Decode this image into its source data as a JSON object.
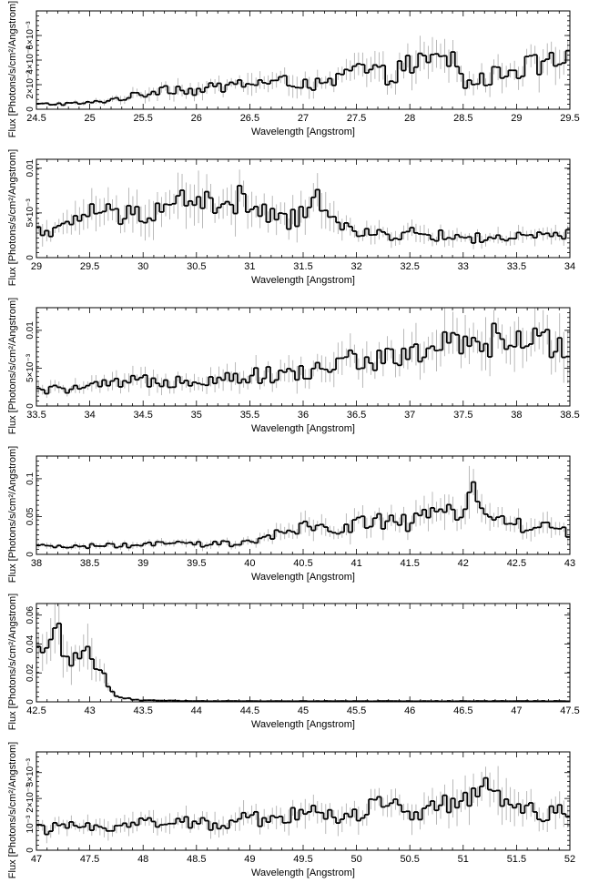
{
  "chart_data": [
    {
      "type": "line",
      "xlabel": "Wavelength [Angstrom]",
      "ylabel": "Flux [Photons/s/cm²/Angstrom]",
      "xlim": [
        24.5,
        29.5
      ],
      "ylim": [
        0,
        0.008
      ],
      "xticks": [
        "24.5",
        "25",
        "25.5",
        "26",
        "26.5",
        "27",
        "27.5",
        "28",
        "28.5",
        "29",
        "29.5"
      ],
      "yticks": [
        {
          "v": 0,
          "label": "0"
        },
        {
          "v": 0.002,
          "label": "2×10⁻³"
        },
        {
          "v": 0.004,
          "label": "4×10⁻³"
        },
        {
          "v": 0.006,
          "label": "6×10⁻³"
        }
      ],
      "series": [
        {
          "x": [
            24.5,
            25.0,
            25.5,
            25.7,
            26.0,
            26.3,
            26.5,
            26.7,
            27.0,
            27.2,
            27.5,
            27.8,
            28.0,
            28.2,
            28.4,
            28.5,
            28.7,
            28.9,
            29.0,
            29.2,
            29.5
          ],
          "y": [
            0.0004,
            0.0005,
            0.0012,
            0.0018,
            0.0015,
            0.0019,
            0.0022,
            0.0021,
            0.0023,
            0.0018,
            0.0033,
            0.0027,
            0.0036,
            0.0038,
            0.0042,
            0.0021,
            0.0024,
            0.0032,
            0.0033,
            0.0036,
            0.0039
          ]
        }
      ]
    },
    {
      "type": "line",
      "xlabel": "Wavelength [Angstrom]",
      "ylabel": "Flux [Photons/s/cm²/Angstrom]",
      "xlim": [
        29,
        34
      ],
      "ylim": [
        0,
        0.011
      ],
      "xticks": [
        "29",
        "29.5",
        "30",
        "30.5",
        "31",
        "31.5",
        "32",
        "32.5",
        "33",
        "33.5",
        "34"
      ],
      "yticks": [
        {
          "v": 0,
          "label": "0"
        },
        {
          "v": 0.005,
          "label": "5×10⁻³"
        },
        {
          "v": 0.01,
          "label": "0.01"
        }
      ],
      "series": [
        {
          "x": [
            29.0,
            29.3,
            29.5,
            29.8,
            30.0,
            30.3,
            30.5,
            30.7,
            30.9,
            31.1,
            31.3,
            31.5,
            31.7,
            31.85,
            32.0,
            32.5,
            33.0,
            33.5,
            34.0
          ],
          "y": [
            0.003,
            0.0033,
            0.0055,
            0.0045,
            0.0052,
            0.006,
            0.0072,
            0.005,
            0.0065,
            0.005,
            0.0042,
            0.0045,
            0.007,
            0.004,
            0.0025,
            0.0027,
            0.0022,
            0.0022,
            0.0025
          ]
        }
      ]
    },
    {
      "type": "line",
      "xlabel": "Wavelength [Angstrom]",
      "ylabel": "Flux [Photons/s/cm²/Angstrom]",
      "xlim": [
        33.5,
        38.5
      ],
      "ylim": [
        0,
        0.013
      ],
      "xticks": [
        "33.5",
        "34",
        "34.5",
        "35",
        "35.5",
        "36",
        "36.5",
        "37",
        "37.5",
        "38",
        "38.5"
      ],
      "yticks": [
        {
          "v": 0,
          "label": "0"
        },
        {
          "v": 0.005,
          "label": "5×10⁻³"
        },
        {
          "v": 0.01,
          "label": "0.01"
        }
      ],
      "series": [
        {
          "x": [
            33.5,
            34.0,
            34.5,
            35.0,
            35.5,
            36.0,
            36.3,
            36.5,
            36.8,
            37.0,
            37.3,
            37.5,
            37.8,
            38.0,
            38.3,
            38.5
          ],
          "y": [
            0.002,
            0.0025,
            0.0033,
            0.0035,
            0.004,
            0.0043,
            0.0055,
            0.0063,
            0.006,
            0.0068,
            0.0082,
            0.0075,
            0.0088,
            0.008,
            0.0085,
            0.009
          ]
        }
      ]
    },
    {
      "type": "line",
      "xlabel": "Wavelength [Angstrom]",
      "ylabel": "Flux [Photons/s/cm²/Angstrom]",
      "xlim": [
        38,
        43
      ],
      "ylim": [
        0,
        0.13
      ],
      "xticks": [
        "38",
        "38.5",
        "39",
        "39.5",
        "40",
        "40.5",
        "41",
        "41.5",
        "42",
        "42.5",
        "43"
      ],
      "yticks": [
        {
          "v": 0,
          "label": "0"
        },
        {
          "v": 0.05,
          "label": "0.05"
        },
        {
          "v": 0.1,
          "label": "0.1"
        }
      ],
      "series": [
        {
          "x": [
            38.0,
            38.5,
            39.0,
            39.3,
            39.5,
            40.0,
            40.3,
            40.5,
            40.8,
            41.0,
            41.3,
            41.5,
            41.8,
            42.0,
            42.1,
            42.2,
            42.5,
            43.0
          ],
          "y": [
            0.01,
            0.011,
            0.012,
            0.015,
            0.013,
            0.015,
            0.028,
            0.035,
            0.032,
            0.042,
            0.045,
            0.04,
            0.055,
            0.062,
            0.098,
            0.05,
            0.04,
            0.03
          ]
        }
      ]
    },
    {
      "type": "line",
      "xlabel": "Wavelength [Angstrom]",
      "ylabel": "Flux [Photons/s/cm²/Angstrom]",
      "xlim": [
        42.5,
        47.5
      ],
      "ylim": [
        0,
        0.068
      ],
      "xticks": [
        "42.5",
        "43",
        "43.5",
        "44",
        "44.5",
        "45",
        "45.5",
        "46",
        "46.5",
        "47",
        "47.5"
      ],
      "yticks": [
        {
          "v": 0,
          "label": "0"
        },
        {
          "v": 0.02,
          "label": "0.02"
        },
        {
          "v": 0.04,
          "label": "0.04"
        },
        {
          "v": 0.06,
          "label": "0.06"
        }
      ],
      "series": [
        {
          "x": [
            42.5,
            42.6,
            42.7,
            42.8,
            42.9,
            43.0,
            43.1,
            43.2,
            43.3,
            43.5,
            44.0,
            45.0,
            46.0,
            47.0,
            47.5
          ],
          "y": [
            0.03,
            0.04,
            0.05,
            0.032,
            0.03,
            0.042,
            0.022,
            0.006,
            0.003,
            0.001,
            0.0005,
            0.0005,
            0.0005,
            0.0005,
            0.0005
          ]
        }
      ]
    },
    {
      "type": "line",
      "xlabel": "Wavelength [Angstrom]",
      "ylabel": "Flux [Photons/s/cm²/Angstrom]",
      "xlim": [
        47,
        52
      ],
      "ylim": [
        0,
        0.0038
      ],
      "xticks": [
        "47",
        "47.5",
        "48",
        "48.5",
        "49",
        "49.5",
        "50",
        "50.5",
        "51",
        "51.5",
        "52"
      ],
      "yticks": [
        {
          "v": 0,
          "label": "0"
        },
        {
          "v": 0.001,
          "label": "10⁻³"
        },
        {
          "v": 0.002,
          "label": "2×10⁻³"
        },
        {
          "v": 0.003,
          "label": "3×10⁻³"
        }
      ],
      "series": [
        {
          "x": [
            47.0,
            47.5,
            48.0,
            48.5,
            49.0,
            49.5,
            50.0,
            50.3,
            50.5,
            50.8,
            51.0,
            51.2,
            51.3,
            51.5,
            51.8,
            52.0
          ],
          "y": [
            0.0008,
            0.0009,
            0.0011,
            0.001,
            0.0012,
            0.0014,
            0.0014,
            0.0018,
            0.0015,
            0.0019,
            0.0017,
            0.0022,
            0.0024,
            0.0016,
            0.0015,
            0.0016
          ]
        }
      ]
    }
  ]
}
